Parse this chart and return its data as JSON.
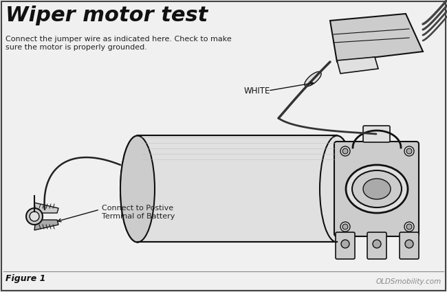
{
  "title": "Wiper motor test",
  "subtitle_line1": "Connect the jumper wire as indicated here. Check to make",
  "subtitle_line2": "sure the motor is properly grounded.",
  "label_white": "WHITE",
  "label_battery": "Connect to Postive\nTerminal of Battery",
  "figure_label": "Figure 1",
  "watermark": "OLDSmobility.com",
  "bg_color": "#f0f0f0",
  "border_color": "#444444",
  "line_color": "#111111",
  "title_color": "#111111",
  "text_color": "#222222",
  "fill_light": "#e0e0e0",
  "fill_mid": "#cccccc",
  "fill_dark": "#aaaaaa"
}
